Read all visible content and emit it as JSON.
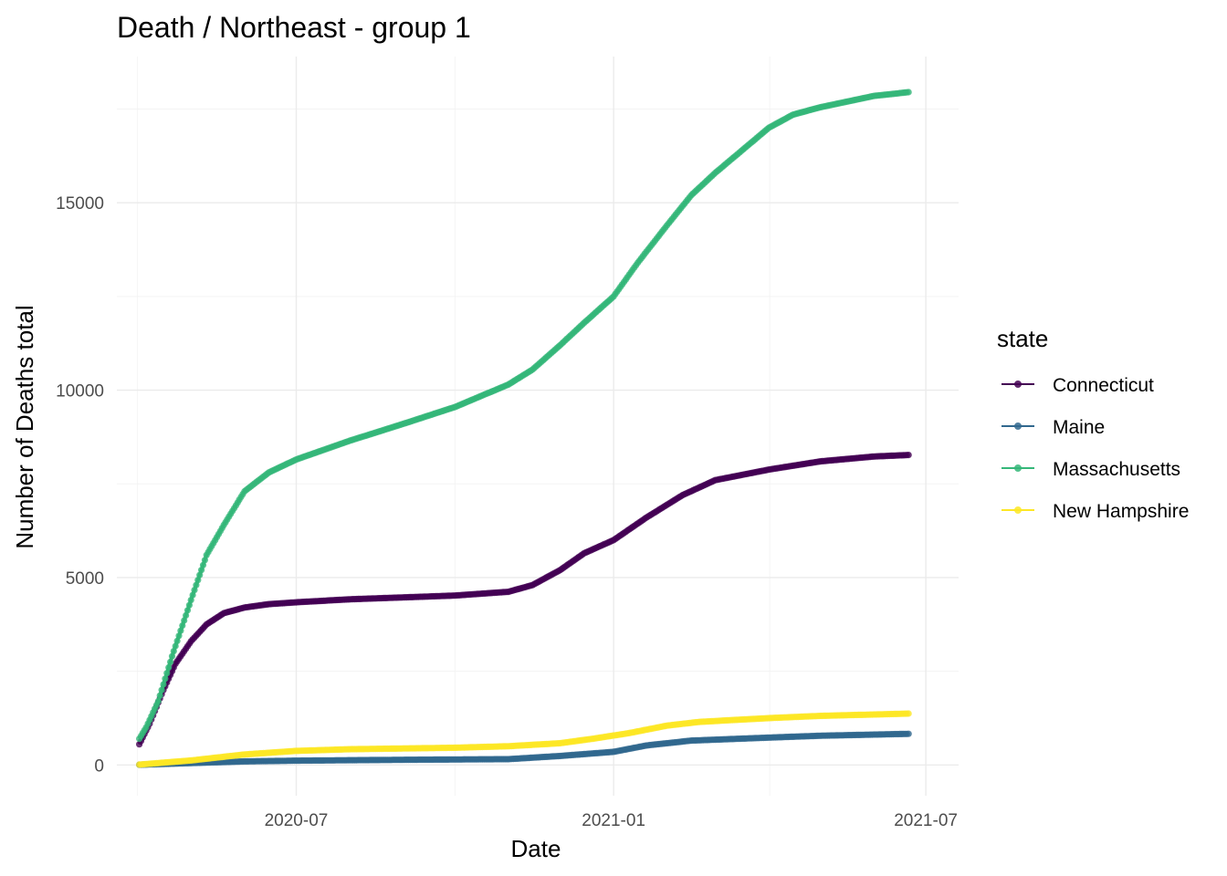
{
  "chart_data": {
    "type": "line",
    "title": "Death / Northeast - group 1",
    "xlabel": "Date",
    "ylabel": "Number of Deaths total",
    "x_axis_type": "date",
    "xlim": [
      "2020-03-19",
      "2021-07-20"
    ],
    "ylim": [
      -820,
      18900
    ],
    "x_ticks": [
      "2020-07-01",
      "2021-01-01",
      "2021-07-01"
    ],
    "x_tick_labels": [
      "2020-07",
      "2021-01",
      "2021-07"
    ],
    "y_ticks": [
      0,
      5000,
      10000,
      15000
    ],
    "y_tick_labels": [
      "0",
      "5000",
      "10000",
      "15000"
    ],
    "grid": true,
    "markers": true,
    "legend": {
      "title": "state",
      "position": "right"
    },
    "series": [
      {
        "name": "Connecticut",
        "color": "#440154",
        "points": [
          [
            "2020-04-01",
            550
          ],
          [
            "2020-04-07",
            1100
          ],
          [
            "2020-04-15",
            2000
          ],
          [
            "2020-04-22",
            2700
          ],
          [
            "2020-05-01",
            3300
          ],
          [
            "2020-05-10",
            3750
          ],
          [
            "2020-05-20",
            4050
          ],
          [
            "2020-06-01",
            4200
          ],
          [
            "2020-06-15",
            4290
          ],
          [
            "2020-07-01",
            4340
          ],
          [
            "2020-08-01",
            4420
          ],
          [
            "2020-09-01",
            4470
          ],
          [
            "2020-10-01",
            4520
          ],
          [
            "2020-11-01",
            4620
          ],
          [
            "2020-11-15",
            4800
          ],
          [
            "2020-12-01",
            5200
          ],
          [
            "2020-12-15",
            5650
          ],
          [
            "2021-01-01",
            6000
          ],
          [
            "2021-01-20",
            6600
          ],
          [
            "2021-02-10",
            7200
          ],
          [
            "2021-03-01",
            7600
          ],
          [
            "2021-04-01",
            7880
          ],
          [
            "2021-05-01",
            8100
          ],
          [
            "2021-06-01",
            8230
          ],
          [
            "2021-06-21",
            8270
          ]
        ]
      },
      {
        "name": "Maine",
        "color": "#31688e",
        "points": [
          [
            "2020-04-01",
            5
          ],
          [
            "2020-05-01",
            50
          ],
          [
            "2020-06-01",
            95
          ],
          [
            "2020-07-01",
            115
          ],
          [
            "2020-09-01",
            138
          ],
          [
            "2020-11-01",
            155
          ],
          [
            "2020-12-01",
            240
          ],
          [
            "2021-01-01",
            350
          ],
          [
            "2021-01-20",
            520
          ],
          [
            "2021-02-15",
            650
          ],
          [
            "2021-04-01",
            730
          ],
          [
            "2021-05-01",
            780
          ],
          [
            "2021-06-21",
            830
          ]
        ]
      },
      {
        "name": "Massachusetts",
        "color": "#35b779",
        "points": [
          [
            "2020-04-01",
            700
          ],
          [
            "2020-04-05",
            1000
          ],
          [
            "2020-04-12",
            1700
          ],
          [
            "2020-04-20",
            2900
          ],
          [
            "2020-05-01",
            4400
          ],
          [
            "2020-05-10",
            5600
          ],
          [
            "2020-05-20",
            6400
          ],
          [
            "2020-06-01",
            7300
          ],
          [
            "2020-06-15",
            7800
          ],
          [
            "2020-07-01",
            8150
          ],
          [
            "2020-08-01",
            8650
          ],
          [
            "2020-09-01",
            9100
          ],
          [
            "2020-10-01",
            9550
          ],
          [
            "2020-11-01",
            10150
          ],
          [
            "2020-11-15",
            10550
          ],
          [
            "2020-12-01",
            11200
          ],
          [
            "2020-12-15",
            11800
          ],
          [
            "2021-01-01",
            12500
          ],
          [
            "2021-01-15",
            13400
          ],
          [
            "2021-02-01",
            14400
          ],
          [
            "2021-02-15",
            15200
          ],
          [
            "2021-03-01",
            15800
          ],
          [
            "2021-04-01",
            17000
          ],
          [
            "2021-04-15",
            17350
          ],
          [
            "2021-05-01",
            17550
          ],
          [
            "2021-06-01",
            17850
          ],
          [
            "2021-06-21",
            17950
          ]
        ]
      },
      {
        "name": "New Hampshire",
        "color": "#fde725",
        "points": [
          [
            "2020-04-01",
            10
          ],
          [
            "2020-05-01",
            120
          ],
          [
            "2020-06-01",
            280
          ],
          [
            "2020-07-01",
            375
          ],
          [
            "2020-08-01",
            420
          ],
          [
            "2020-09-01",
            440
          ],
          [
            "2020-10-01",
            460
          ],
          [
            "2020-11-01",
            500
          ],
          [
            "2020-12-01",
            580
          ],
          [
            "2020-12-20",
            700
          ],
          [
            "2021-01-10",
            850
          ],
          [
            "2021-02-01",
            1050
          ],
          [
            "2021-02-20",
            1150
          ],
          [
            "2021-04-01",
            1250
          ],
          [
            "2021-05-01",
            1310
          ],
          [
            "2021-06-21",
            1370
          ]
        ]
      }
    ]
  }
}
